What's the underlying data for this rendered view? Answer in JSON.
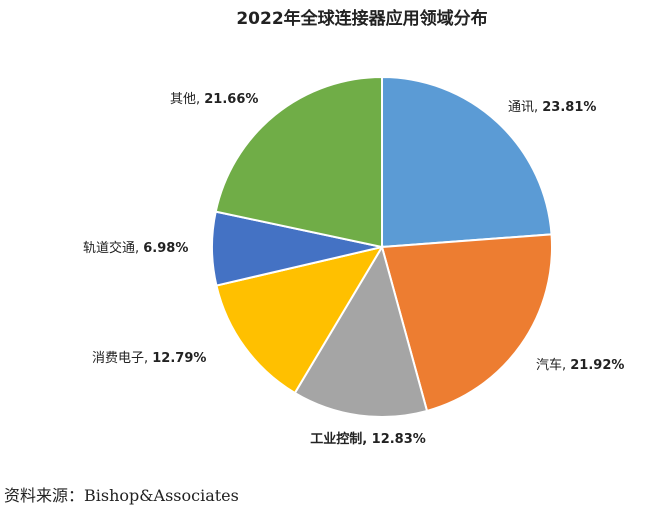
{
  "chart_data": {
    "type": "pie",
    "title": "2022年全球连接器应用领域分布",
    "slices": [
      {
        "label": "通讯",
        "value": 23.81,
        "display": "23.81%",
        "color": "#5B9BD5"
      },
      {
        "label": "汽车",
        "value": 21.92,
        "display": "21.92%",
        "color": "#ED7D31"
      },
      {
        "label": "工业控制",
        "value": 12.83,
        "display": "12.83%",
        "color": "#A5A5A5"
      },
      {
        "label": "消费电子",
        "value": 12.79,
        "display": "12.79%",
        "color": "#FFC000"
      },
      {
        "label": "轨道交通",
        "value": 6.98,
        "display": "6.98%",
        "color": "#4472C4"
      },
      {
        "label": "其他",
        "value": 21.66,
        "display": "21.66%",
        "color": "#70AD47"
      }
    ]
  },
  "source": "资料来源：Bishop&Associates"
}
